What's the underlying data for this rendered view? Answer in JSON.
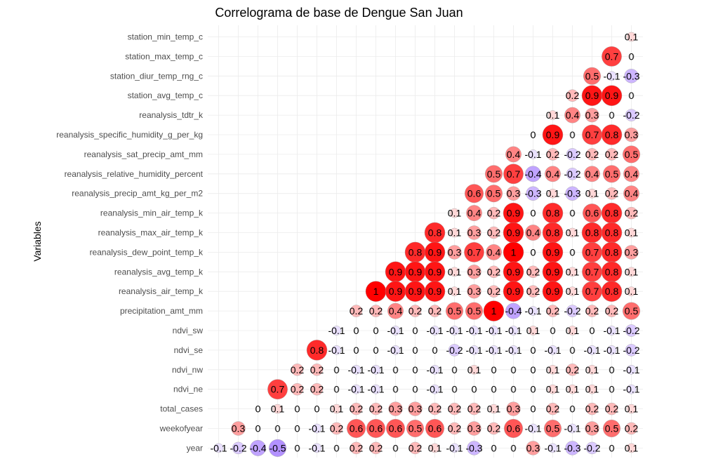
{
  "chart_data": {
    "type": "heatmap",
    "title": "Correlograma de base de Dengue San Juan",
    "ylabel": "Variables",
    "xlabel": "",
    "value_range": [
      -1,
      1
    ],
    "grid": true,
    "colors": {
      "high": "#ff0000",
      "mid": "#ffffff",
      "low": "#7b3fff"
    },
    "variables": [
      "station_min_temp_c",
      "station_max_temp_c",
      "station_diur_temp_rng_c",
      "station_avg_temp_c",
      "reanalysis_tdtr_k",
      "reanalysis_specific_humidity_g_per_kg",
      "reanalysis_sat_precip_amt_mm",
      "reanalysis_relative_humidity_percent",
      "reanalysis_precip_amt_kg_per_m2",
      "reanalysis_min_air_temp_k",
      "reanalysis_max_air_temp_k",
      "reanalysis_dew_point_temp_k",
      "reanalysis_avg_temp_k",
      "reanalysis_air_temp_k",
      "precipitation_amt_mm",
      "ndvi_sw",
      "ndvi_se",
      "ndvi_nw",
      "ndvi_ne",
      "total_cases",
      "weekofyear",
      "year"
    ],
    "rows": [
      [
        0.1
      ],
      [
        0.7,
        0
      ],
      [
        0.5,
        -0.1,
        -0.3
      ],
      [
        0.2,
        0.9,
        0.9,
        0
      ],
      [
        0.1,
        0.4,
        0.3,
        0,
        -0.2
      ],
      [
        0,
        0.9,
        0,
        0.7,
        0.8,
        0.3
      ],
      [
        0.4,
        -0.1,
        0.2,
        -0.2,
        0.2,
        0.2,
        0.5
      ],
      [
        0.5,
        0.7,
        -0.4,
        0.4,
        -0.2,
        0.4,
        0.5,
        0.4
      ],
      [
        0.6,
        0.5,
        0.3,
        -0.3,
        0.1,
        -0.3,
        0.1,
        0.2,
        0.4
      ],
      [
        0.1,
        0.4,
        0.2,
        0.9,
        0,
        0.8,
        0,
        0.6,
        0.8,
        0.2
      ],
      [
        0.8,
        0.1,
        0.3,
        0.2,
        0.9,
        0.4,
        0.8,
        0.1,
        0.8,
        0.8,
        0.1
      ],
      [
        0.8,
        0.9,
        0.3,
        0.7,
        0.4,
        1,
        0,
        0.9,
        0,
        0.7,
        0.8,
        0.3
      ],
      [
        0.9,
        0.9,
        0.9,
        0.1,
        0.3,
        0.2,
        0.9,
        0.2,
        0.9,
        0.1,
        0.7,
        0.8,
        0.1
      ],
      [
        1,
        0.9,
        0.9,
        0.9,
        0.1,
        0.3,
        0.2,
        0.9,
        0.2,
        0.9,
        0.1,
        0.7,
        0.8,
        0.1
      ],
      [
        0.2,
        0.2,
        0.4,
        0.2,
        0.2,
        0.5,
        0.5,
        1,
        -0.4,
        -0.1,
        0.2,
        -0.2,
        0.2,
        0.2,
        0.5
      ],
      [
        -0.1,
        0,
        0,
        -0.1,
        0,
        -0.1,
        -0.1,
        -0.1,
        -0.1,
        -0.1,
        0.1,
        0,
        0.1,
        0,
        -0.1,
        -0.2
      ],
      [
        0.8,
        -0.1,
        0,
        0,
        -0.1,
        0,
        0,
        -0.2,
        -0.1,
        -0.1,
        -0.1,
        0,
        -0.1,
        0,
        -0.1,
        -0.1,
        -0.2
      ],
      [
        0.2,
        0.2,
        0,
        -0.1,
        -0.1,
        0,
        0,
        -0.1,
        0,
        0.1,
        0,
        0,
        0,
        0.1,
        0.2,
        0.1,
        0,
        -0.1
      ],
      [
        0.7,
        0.2,
        0.2,
        0,
        -0.1,
        -0.1,
        0,
        0,
        -0.1,
        0,
        0,
        0,
        0,
        0,
        0.1,
        0.1,
        0.1,
        0,
        -0.1
      ],
      [
        0,
        0.1,
        0,
        0,
        0.1,
        0.2,
        0.2,
        0.3,
        0.3,
        0.2,
        0.2,
        0.2,
        0.1,
        0.3,
        0,
        0.2,
        0,
        0.2,
        0.2,
        0.1
      ],
      [
        0.3,
        0,
        0,
        0,
        -0.1,
        0.2,
        0.6,
        0.6,
        0.6,
        0.5,
        0.6,
        0.2,
        0.3,
        0.2,
        0.6,
        -0.1,
        0.5,
        -0.1,
        0.3,
        0.5,
        0.2
      ],
      [
        -0.1,
        -0.2,
        -0.4,
        -0.5,
        0,
        -0.1,
        0,
        0.2,
        0.2,
        0,
        0.2,
        0.1,
        -0.1,
        -0.3,
        0,
        0,
        0.3,
        -0.1,
        -0.3,
        -0.2,
        0,
        0.1
      ]
    ]
  }
}
